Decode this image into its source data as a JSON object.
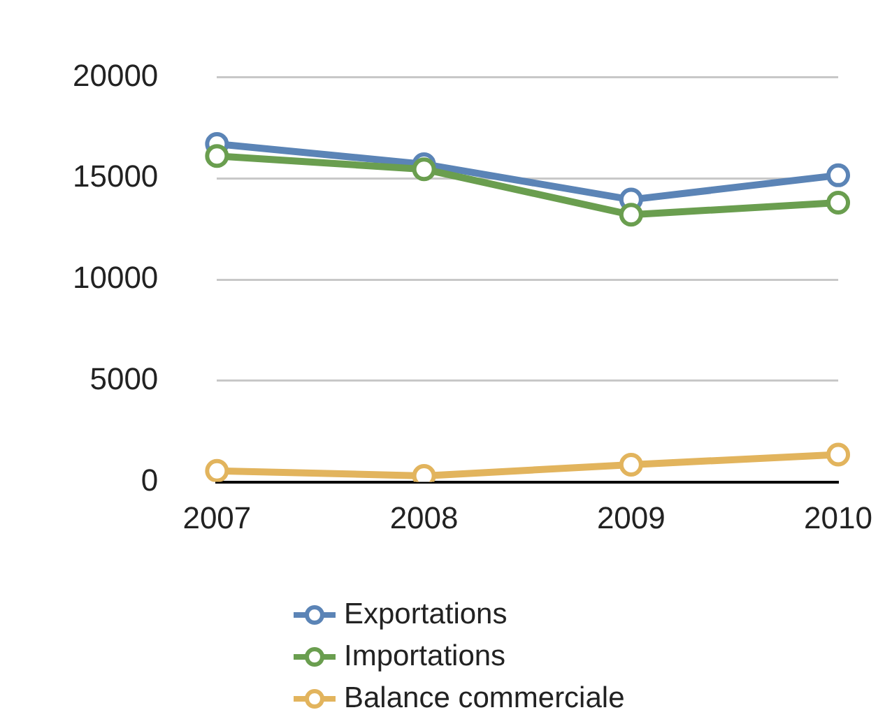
{
  "chart_data": {
    "type": "line",
    "categories": [
      "2007",
      "2008",
      "2009",
      "2010"
    ],
    "series": [
      {
        "name": "Exportations",
        "color": "#5b84b6",
        "values": [
          16700,
          15700,
          13950,
          15150
        ]
      },
      {
        "name": "Importations",
        "color": "#6a9e4f",
        "values": [
          16100,
          15450,
          13200,
          13800
        ]
      },
      {
        "name": "Balance commerciale",
        "color": "#e2b45d",
        "values": [
          550,
          300,
          850,
          1350
        ]
      }
    ],
    "ylim": [
      0,
      20000
    ],
    "yticks": [
      0,
      5000,
      10000,
      15000,
      20000
    ],
    "grid": "y",
    "legend": "bottom",
    "marker": "circle",
    "line_style": "solid"
  }
}
